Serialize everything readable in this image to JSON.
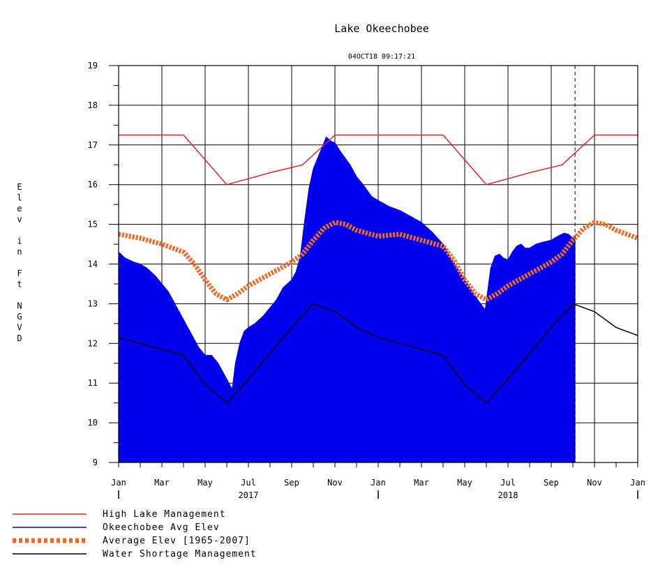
{
  "chart_data": {
    "type": "area",
    "title": "Lake Okeechobee",
    "subtitle": "04OCT18  09:17:21",
    "ylabel": "Elev in Ft NGVD",
    "ylim": [
      9,
      19
    ],
    "yticks": [
      "9",
      "10",
      "11",
      "12",
      "13",
      "14",
      "15",
      "16",
      "17",
      "18",
      "19"
    ],
    "x_range_months": [
      0,
      24
    ],
    "month_ticks": [
      {
        "m": 0,
        "label": "Jan"
      },
      {
        "m": 2,
        "label": "Mar"
      },
      {
        "m": 4,
        "label": "May"
      },
      {
        "m": 6,
        "label": "Jul"
      },
      {
        "m": 8,
        "label": "Sep"
      },
      {
        "m": 10,
        "label": "Nov"
      },
      {
        "m": 12,
        "label": "Jan"
      },
      {
        "m": 14,
        "label": "Mar"
      },
      {
        "m": 16,
        "label": "May"
      },
      {
        "m": 18,
        "label": "Jul"
      },
      {
        "m": 20,
        "label": "Sep"
      },
      {
        "m": 22,
        "label": "Nov"
      },
      {
        "m": 24,
        "label": "Jan"
      }
    ],
    "year_labels": [
      {
        "m": 6,
        "label": "2017"
      },
      {
        "m": 18,
        "label": "2018"
      }
    ],
    "current_date_m": 21.1,
    "grid": true,
    "legend_position": "bottom-left",
    "series": [
      {
        "name": "High Lake Management",
        "style": "line",
        "color": "#e8202a",
        "points": [
          [
            0,
            17.25
          ],
          [
            3,
            17.25
          ],
          [
            5,
            16.0
          ],
          [
            6,
            16.15
          ],
          [
            7,
            16.3
          ],
          [
            8.5,
            16.5
          ],
          [
            10,
            17.25
          ],
          [
            15,
            17.25
          ],
          [
            17,
            16.0
          ],
          [
            18,
            16.15
          ],
          [
            19,
            16.3
          ],
          [
            20.5,
            16.5
          ],
          [
            22,
            17.25
          ],
          [
            24,
            17.25
          ]
        ]
      },
      {
        "name": "Okeechobee Avg Elev",
        "style": "area",
        "color": "#0000ee",
        "points": [
          [
            0,
            14.3
          ],
          [
            0.3,
            14.15
          ],
          [
            0.7,
            14.05
          ],
          [
            1,
            14.0
          ],
          [
            1.3,
            13.9
          ],
          [
            1.7,
            13.7
          ],
          [
            2,
            13.5
          ],
          [
            2.3,
            13.3
          ],
          [
            2.7,
            12.9
          ],
          [
            3,
            12.6
          ],
          [
            3.3,
            12.3
          ],
          [
            3.7,
            11.9
          ],
          [
            4,
            11.7
          ],
          [
            4.3,
            11.7
          ],
          [
            4.6,
            11.5
          ],
          [
            4.9,
            11.2
          ],
          [
            5.1,
            11.0
          ],
          [
            5.25,
            10.85
          ],
          [
            5.4,
            11.5
          ],
          [
            5.6,
            12.0
          ],
          [
            5.8,
            12.3
          ],
          [
            6,
            12.4
          ],
          [
            6.3,
            12.5
          ],
          [
            6.7,
            12.7
          ],
          [
            7,
            12.9
          ],
          [
            7.3,
            13.1
          ],
          [
            7.6,
            13.4
          ],
          [
            8,
            13.6
          ],
          [
            8.2,
            13.8
          ],
          [
            8.4,
            14.2
          ],
          [
            8.6,
            15.1
          ],
          [
            8.8,
            15.9
          ],
          [
            9,
            16.4
          ],
          [
            9.3,
            16.8
          ],
          [
            9.6,
            17.2
          ],
          [
            9.8,
            17.1
          ],
          [
            10,
            17.05
          ],
          [
            10.3,
            16.8
          ],
          [
            10.7,
            16.5
          ],
          [
            11,
            16.2
          ],
          [
            11.3,
            16.0
          ],
          [
            11.7,
            15.7
          ],
          [
            12,
            15.6
          ],
          [
            12.5,
            15.45
          ],
          [
            13,
            15.35
          ],
          [
            13.5,
            15.2
          ],
          [
            14,
            15.05
          ],
          [
            14.5,
            14.8
          ],
          [
            15,
            14.5
          ],
          [
            15.3,
            14.2
          ],
          [
            15.6,
            13.95
          ],
          [
            16,
            13.6
          ],
          [
            16.3,
            13.35
          ],
          [
            16.6,
            13.1
          ],
          [
            16.8,
            12.95
          ],
          [
            16.95,
            12.85
          ],
          [
            17.2,
            13.9
          ],
          [
            17.4,
            14.2
          ],
          [
            17.6,
            14.25
          ],
          [
            17.8,
            14.15
          ],
          [
            18,
            14.1
          ],
          [
            18.2,
            14.3
          ],
          [
            18.4,
            14.45
          ],
          [
            18.6,
            14.5
          ],
          [
            18.8,
            14.4
          ],
          [
            19,
            14.4
          ],
          [
            19.3,
            14.5
          ],
          [
            19.6,
            14.55
          ],
          [
            20,
            14.6
          ],
          [
            20.3,
            14.7
          ],
          [
            20.6,
            14.78
          ],
          [
            20.8,
            14.75
          ],
          [
            21,
            14.65
          ],
          [
            21.1,
            14.6
          ]
        ]
      },
      {
        "name": "Average Elev [1965-2007]",
        "style": "thick-dash",
        "color": "#f06a24",
        "points": [
          [
            0,
            14.75
          ],
          [
            1,
            14.65
          ],
          [
            2,
            14.5
          ],
          [
            3,
            14.3
          ],
          [
            3.5,
            14.0
          ],
          [
            4,
            13.6
          ],
          [
            4.5,
            13.25
          ],
          [
            5,
            13.1
          ],
          [
            5.5,
            13.25
          ],
          [
            6,
            13.45
          ],
          [
            7,
            13.75
          ],
          [
            8,
            14.05
          ],
          [
            8.5,
            14.25
          ],
          [
            9,
            14.6
          ],
          [
            9.5,
            14.9
          ],
          [
            10,
            15.05
          ],
          [
            10.5,
            15.0
          ],
          [
            11,
            14.85
          ],
          [
            12,
            14.7
          ],
          [
            13,
            14.75
          ],
          [
            14,
            14.6
          ],
          [
            15,
            14.45
          ],
          [
            15.5,
            14.1
          ],
          [
            16,
            13.6
          ],
          [
            16.5,
            13.25
          ],
          [
            17,
            13.1
          ],
          [
            17.5,
            13.25
          ],
          [
            18,
            13.45
          ],
          [
            19,
            13.75
          ],
          [
            20,
            14.05
          ],
          [
            20.5,
            14.25
          ],
          [
            21,
            14.6
          ],
          [
            21.5,
            14.9
          ],
          [
            22,
            15.05
          ],
          [
            22.5,
            15.0
          ],
          [
            23,
            14.85
          ],
          [
            24,
            14.65
          ]
        ]
      },
      {
        "name": "Water Shortage Management",
        "style": "line",
        "color": "#000000",
        "points": [
          [
            0,
            12.15
          ],
          [
            1,
            12.0
          ],
          [
            2,
            11.85
          ],
          [
            3,
            11.7
          ],
          [
            4,
            10.95
          ],
          [
            5,
            10.5
          ],
          [
            6,
            11.1
          ],
          [
            7,
            11.75
          ],
          [
            8,
            12.4
          ],
          [
            9,
            13.0
          ],
          [
            10,
            12.8
          ],
          [
            11,
            12.4
          ],
          [
            12,
            12.15
          ],
          [
            13,
            12.0
          ],
          [
            14,
            11.85
          ],
          [
            15,
            11.7
          ],
          [
            16,
            10.95
          ],
          [
            17,
            10.5
          ],
          [
            18,
            11.1
          ],
          [
            19,
            11.75
          ],
          [
            20,
            12.4
          ],
          [
            21,
            13.0
          ],
          [
            22,
            12.8
          ],
          [
            23,
            12.4
          ],
          [
            24,
            12.2
          ]
        ]
      }
    ]
  }
}
